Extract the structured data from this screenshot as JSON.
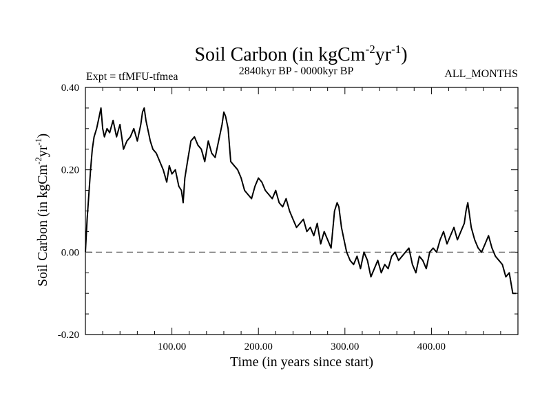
{
  "chart_data": {
    "type": "line",
    "title": "Soil Carbon (in kgCm",
    "title_sup1": "-2",
    "title_mid": "yr",
    "title_sup2": "-1",
    "title_end": ")",
    "subtitle_left": "Expt = tfMFU-tfmea",
    "subtitle_center": "2840kyr BP - 0000kyr BP",
    "subtitle_right": "ALL_MONTHS",
    "xlabel": "Time (in years since start)",
    "ylabel": "Soil Carbon (in kgCm",
    "ylabel_sup1": "-2",
    "ylabel_mid": "yr",
    "ylabel_sup2": "-1",
    "ylabel_end": ")",
    "xlim": [
      0,
      500
    ],
    "ylim": [
      -0.2,
      0.4
    ],
    "x_ticks": [
      100,
      200,
      300,
      400
    ],
    "x_tick_labels": [
      "100.00",
      "200.00",
      "300.00",
      "400.00"
    ],
    "y_ticks": [
      -0.2,
      0.0,
      0.2,
      0.4
    ],
    "y_tick_labels": [
      "-0.20",
      "0.00",
      "0.20",
      "0.40"
    ],
    "reference_line": 0.0,
    "series": [
      {
        "name": "Soil Carbon",
        "color": "#000000",
        "x": [
          0,
          2,
          4,
          6,
          8,
          10,
          13,
          16,
          18,
          20,
          22,
          25,
          28,
          32,
          36,
          40,
          44,
          48,
          52,
          56,
          60,
          64,
          66,
          68,
          70,
          72,
          75,
          78,
          82,
          86,
          90,
          94,
          97,
          100,
          104,
          108,
          111,
          113,
          115,
          118,
          122,
          126,
          130,
          134,
          138,
          142,
          146,
          150,
          154,
          158,
          160,
          162,
          165,
          168,
          172,
          176,
          180,
          184,
          188,
          192,
          196,
          200,
          204,
          208,
          212,
          216,
          220,
          224,
          228,
          232,
          236,
          240,
          244,
          248,
          252,
          256,
          260,
          264,
          268,
          272,
          276,
          280,
          284,
          288,
          291,
          293,
          296,
          299,
          302,
          306,
          310,
          314,
          318,
          322,
          326,
          330,
          334,
          338,
          342,
          346,
          350,
          354,
          358,
          362,
          366,
          370,
          374,
          378,
          382,
          386,
          390,
          394,
          398,
          402,
          406,
          410,
          414,
          418,
          422,
          426,
          430,
          434,
          438,
          440,
          442,
          446,
          450,
          454,
          458,
          462,
          466,
          470,
          474,
          478,
          482,
          486,
          490,
          494,
          498
        ],
        "values": [
          0.0,
          0.08,
          0.14,
          0.2,
          0.25,
          0.28,
          0.3,
          0.33,
          0.35,
          0.3,
          0.28,
          0.3,
          0.29,
          0.32,
          0.28,
          0.31,
          0.25,
          0.27,
          0.28,
          0.3,
          0.27,
          0.31,
          0.34,
          0.35,
          0.32,
          0.3,
          0.27,
          0.25,
          0.24,
          0.22,
          0.2,
          0.17,
          0.21,
          0.19,
          0.2,
          0.16,
          0.15,
          0.12,
          0.18,
          0.22,
          0.27,
          0.28,
          0.26,
          0.25,
          0.22,
          0.27,
          0.24,
          0.23,
          0.27,
          0.31,
          0.34,
          0.33,
          0.3,
          0.22,
          0.21,
          0.2,
          0.18,
          0.15,
          0.14,
          0.13,
          0.16,
          0.18,
          0.17,
          0.15,
          0.14,
          0.13,
          0.15,
          0.12,
          0.11,
          0.13,
          0.1,
          0.08,
          0.06,
          0.07,
          0.08,
          0.05,
          0.06,
          0.04,
          0.07,
          0.02,
          0.05,
          0.03,
          0.01,
          0.1,
          0.12,
          0.11,
          0.06,
          0.03,
          0.0,
          -0.02,
          -0.03,
          -0.01,
          -0.04,
          0.0,
          -0.02,
          -0.06,
          -0.04,
          -0.02,
          -0.05,
          -0.03,
          -0.04,
          -0.01,
          0.0,
          -0.02,
          -0.01,
          0.0,
          0.01,
          -0.03,
          -0.05,
          -0.01,
          -0.02,
          -0.04,
          0.0,
          0.01,
          0.0,
          0.03,
          0.05,
          0.02,
          0.04,
          0.06,
          0.03,
          0.05,
          0.07,
          0.1,
          0.12,
          0.06,
          0.03,
          0.01,
          0.0,
          0.02,
          0.04,
          0.01,
          -0.01,
          -0.02,
          -0.03,
          -0.06,
          -0.05,
          -0.1,
          -0.1
        ]
      }
    ]
  }
}
